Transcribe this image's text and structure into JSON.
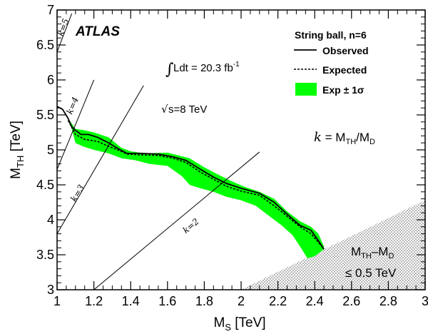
{
  "chart_data": {
    "type": "line",
    "experiment": "ATLAS",
    "xlabel_main": "M",
    "xlabel_sub": "S",
    "xlabel_unit": " [TeV]",
    "ylabel_main": "M",
    "ylabel_sub": "TH",
    "ylabel_unit": " [TeV]",
    "xlim": [
      1,
      3
    ],
    "ylim": [
      3,
      7
    ],
    "xticks": [
      "1",
      "1.2",
      "1.4",
      "1.6",
      "1.8",
      "2",
      "2.2",
      "2.4",
      "2.6",
      "2.8",
      "3"
    ],
    "yticks": [
      "3",
      "3.5",
      "4",
      "4.5",
      "5",
      "5.5",
      "6",
      "6.5",
      "7"
    ],
    "legend": {
      "title": "String ball, n=6",
      "observed": "Observed",
      "expected": "Expected",
      "band": "Exp ± 1σ",
      "placement": "top-right"
    },
    "lumi_text": "Ldt = 20.3 fb",
    "lumi_sup": "-1",
    "sqrt_s_text": "s=8 TeV",
    "k_def": {
      "k": "k",
      "eq": " = M",
      "sub1": "TH",
      "slash": "/M",
      "sub2": "D"
    },
    "excluded_region": {
      "line1_main": "M",
      "line1_sub1": "TH",
      "line1_mid": "–M",
      "line1_sub2": "D",
      "line2": "≤ 0.5 TeV"
    },
    "k_lines": [
      {
        "label": "k=5",
        "k": 5
      },
      {
        "label": "k=4",
        "k": 4
      },
      {
        "label": "k=3",
        "k": 3
      },
      {
        "label": "k=2",
        "k": 2
      }
    ],
    "series": [
      {
        "name": "Observed",
        "x": [
          1.0,
          1.03,
          1.06,
          1.08,
          1.1,
          1.13,
          1.17,
          1.22,
          1.28,
          1.33,
          1.38,
          1.45,
          1.55,
          1.63,
          1.7,
          1.78,
          1.85,
          1.92,
          2.0,
          2.1,
          2.18,
          2.25,
          2.32,
          2.38,
          2.42,
          2.45
        ],
        "y": [
          5.62,
          5.58,
          5.45,
          5.33,
          5.28,
          5.22,
          5.22,
          5.18,
          5.1,
          5.02,
          4.95,
          4.95,
          4.94,
          4.9,
          4.85,
          4.72,
          4.61,
          4.52,
          4.45,
          4.38,
          4.25,
          4.08,
          3.92,
          3.85,
          3.7,
          3.58
        ]
      },
      {
        "name": "Expected",
        "x": [
          1.06,
          1.1,
          1.15,
          1.22,
          1.28,
          1.33,
          1.38,
          1.45,
          1.55,
          1.63,
          1.7,
          1.78,
          1.85,
          1.92,
          2.0,
          2.1,
          2.18,
          2.25,
          2.32,
          2.38,
          2.42,
          2.45
        ],
        "y": [
          5.42,
          5.22,
          5.15,
          5.12,
          5.05,
          5.0,
          4.94,
          4.93,
          4.92,
          4.88,
          4.82,
          4.68,
          4.58,
          4.48,
          4.41,
          4.35,
          4.2,
          4.05,
          3.9,
          3.8,
          3.68,
          3.58
        ]
      }
    ],
    "band": {
      "upper": {
        "x": [
          1.06,
          1.1,
          1.15,
          1.2,
          1.28,
          1.35,
          1.4,
          1.48,
          1.6,
          1.66,
          1.72,
          1.8,
          1.88,
          1.95,
          2.02,
          2.1,
          2.18,
          2.25,
          2.32,
          2.38,
          2.42,
          2.45
        ],
        "y": [
          5.45,
          5.3,
          5.28,
          5.25,
          5.18,
          5.03,
          4.98,
          4.95,
          4.96,
          4.92,
          4.88,
          4.75,
          4.64,
          4.55,
          4.47,
          4.4,
          4.3,
          4.12,
          3.98,
          3.9,
          3.8,
          3.62
        ]
      },
      "lower": {
        "x": [
          2.45,
          2.4,
          2.36,
          2.33,
          2.28,
          2.22,
          2.15,
          2.08,
          2.0,
          1.92,
          1.85,
          1.78,
          1.72,
          1.68,
          1.6,
          1.5,
          1.43,
          1.35,
          1.28,
          1.2,
          1.14,
          1.1,
          1.08,
          1.06
        ],
        "y": [
          3.58,
          3.48,
          3.45,
          3.58,
          3.78,
          3.92,
          4.06,
          4.2,
          4.28,
          4.33,
          4.4,
          4.45,
          4.5,
          4.62,
          4.77,
          4.8,
          4.85,
          4.88,
          4.95,
          5.0,
          5.05,
          5.1,
          5.3,
          5.42
        ]
      }
    },
    "colors": {
      "band": "#00ff00",
      "line": "#000000",
      "hatch": "#b8b8b8"
    },
    "grid": false
  }
}
